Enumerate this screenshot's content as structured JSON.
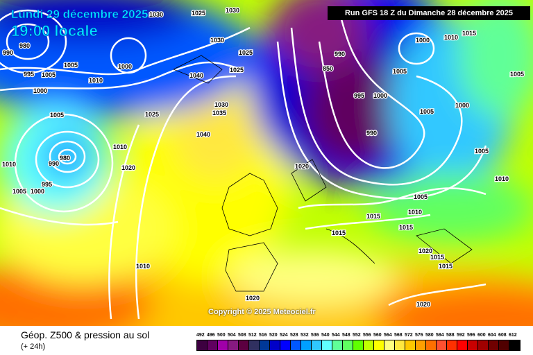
{
  "header": {
    "date": "Lundi 29 décembre 2025",
    "time": "19:00 locale",
    "run": "Run GFS 18 Z du Dimanche 28 décembre 2025"
  },
  "copyright": "Copyright © 2025 Meteociel.fr",
  "footer": {
    "title": "Géop. Z500 & pression au sol",
    "subtitle": "(+ 24h)"
  },
  "legend": {
    "values": [
      "492",
      "496",
      "500",
      "504",
      "508",
      "512",
      "516",
      "520",
      "524",
      "528",
      "532",
      "536",
      "540",
      "544",
      "548",
      "552",
      "556",
      "560",
      "564",
      "568",
      "572",
      "576",
      "580",
      "584",
      "588",
      "592",
      "596",
      "600",
      "604",
      "608",
      "612"
    ],
    "colors": [
      "#3d0040",
      "#600060",
      "#a000a8",
      "#861a80",
      "#5c0040",
      "#303060",
      "#003898",
      "#0000c8",
      "#0000ff",
      "#0058ff",
      "#00a0ff",
      "#30c8ff",
      "#60ffff",
      "#60ff98",
      "#60ff60",
      "#60ff00",
      "#c0ff00",
      "#ffff00",
      "#ffff80",
      "#ffe840",
      "#ffc800",
      "#ffa000",
      "#ff7000",
      "#ff5030",
      "#ff3000",
      "#ff0000",
      "#c80000",
      "#a00000",
      "#700000",
      "#500000",
      "#000000"
    ]
  },
  "pressure_labels": [
    "1030",
    "1025",
    "1030",
    "980",
    "990",
    "1005",
    "1000",
    "995",
    "1005",
    "1010",
    "1000",
    "1030",
    "1025",
    "1025",
    "1040",
    "1030",
    "1035",
    "1025",
    "1040",
    "1005",
    "990",
    "980",
    "1010",
    "1010",
    "1020",
    "995",
    "1005",
    "1000",
    "1010",
    "990",
    "850",
    "995",
    "1000",
    "1005",
    "990",
    "1000",
    "1005",
    "1000",
    "1010",
    "1015",
    "1005",
    "1005",
    "1020",
    "1005",
    "1010",
    "1015",
    "1015",
    "1015",
    "1020",
    "1015",
    "1015",
    "1010",
    "1020",
    "1020"
  ]
}
